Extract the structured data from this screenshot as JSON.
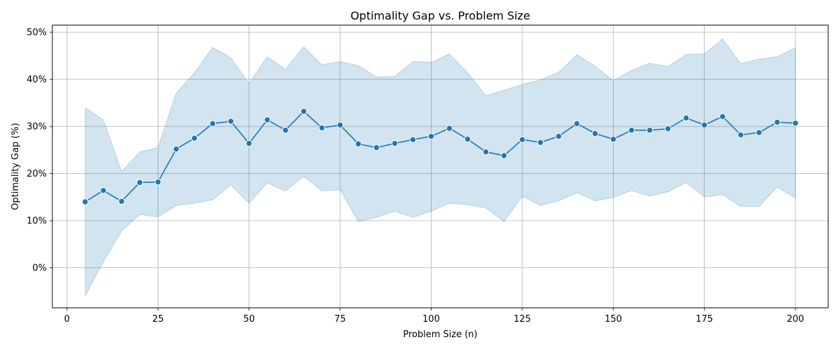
{
  "chart_data": {
    "type": "line",
    "title": "Optimality Gap vs. Problem Size",
    "xlabel": "Problem Size (n)",
    "ylabel": "Optimality Gap (%)",
    "xlim": [
      -4,
      209
    ],
    "ylim": [
      -8.5,
      51.5
    ],
    "xticks": [
      0,
      25,
      50,
      75,
      100,
      125,
      150,
      175,
      200
    ],
    "xtick_labels": [
      "0",
      "25",
      "50",
      "75",
      "100",
      "125",
      "150",
      "175",
      "200"
    ],
    "yticks": [
      0,
      10,
      20,
      30,
      40,
      50
    ],
    "ytick_labels": [
      "0%",
      "10%",
      "20%",
      "30%",
      "40%",
      "50%"
    ],
    "grid": true,
    "line_color": "#1f77b4",
    "band_color": "#1f77b4",
    "series": [
      {
        "x": [
          5,
          10,
          15,
          20,
          25,
          30,
          35,
          40,
          45,
          50,
          55,
          60,
          65,
          70,
          75,
          80,
          85,
          90,
          95,
          100,
          105,
          110,
          115,
          120,
          125,
          130,
          135,
          140,
          145,
          150,
          155,
          160,
          165,
          170,
          175,
          180,
          185,
          190,
          195,
          200
        ],
        "y": [
          14.0,
          16.4,
          14.1,
          18.1,
          18.2,
          25.2,
          27.5,
          30.6,
          31.1,
          26.4,
          31.4,
          29.2,
          33.2,
          29.7,
          30.3,
          26.3,
          25.5,
          26.4,
          27.2,
          27.9,
          29.6,
          27.3,
          24.6,
          23.8,
          27.2,
          26.6,
          27.9,
          30.6,
          28.5,
          27.3,
          29.2,
          29.2,
          29.5,
          31.8,
          30.3,
          32.1,
          28.2,
          28.7,
          30.9,
          30.7
        ],
        "lower": [
          -6.0,
          1.3,
          7.8,
          11.3,
          10.8,
          13.2,
          13.7,
          14.4,
          17.6,
          13.7,
          18.0,
          16.3,
          19.4,
          16.3,
          16.6,
          9.8,
          10.7,
          12.0,
          10.7,
          12.0,
          13.7,
          13.4,
          12.7,
          9.8,
          15.2,
          13.2,
          14.2,
          15.9,
          14.2,
          14.9,
          16.4,
          15.2,
          16.1,
          18.1,
          15.0,
          15.5,
          13.0,
          13.0,
          17.1,
          14.8
        ],
        "upper": [
          34.0,
          31.4,
          20.4,
          24.6,
          25.5,
          37.1,
          41.4,
          46.8,
          44.6,
          39.1,
          44.8,
          42.1,
          46.9,
          43.1,
          43.8,
          42.9,
          40.5,
          40.6,
          43.8,
          43.6,
          45.4,
          41.4,
          36.5,
          37.7,
          38.9,
          39.9,
          41.5,
          45.2,
          42.8,
          39.7,
          41.9,
          43.4,
          42.7,
          45.3,
          45.4,
          48.6,
          43.3,
          44.3,
          44.8,
          46.7
        ]
      }
    ]
  }
}
